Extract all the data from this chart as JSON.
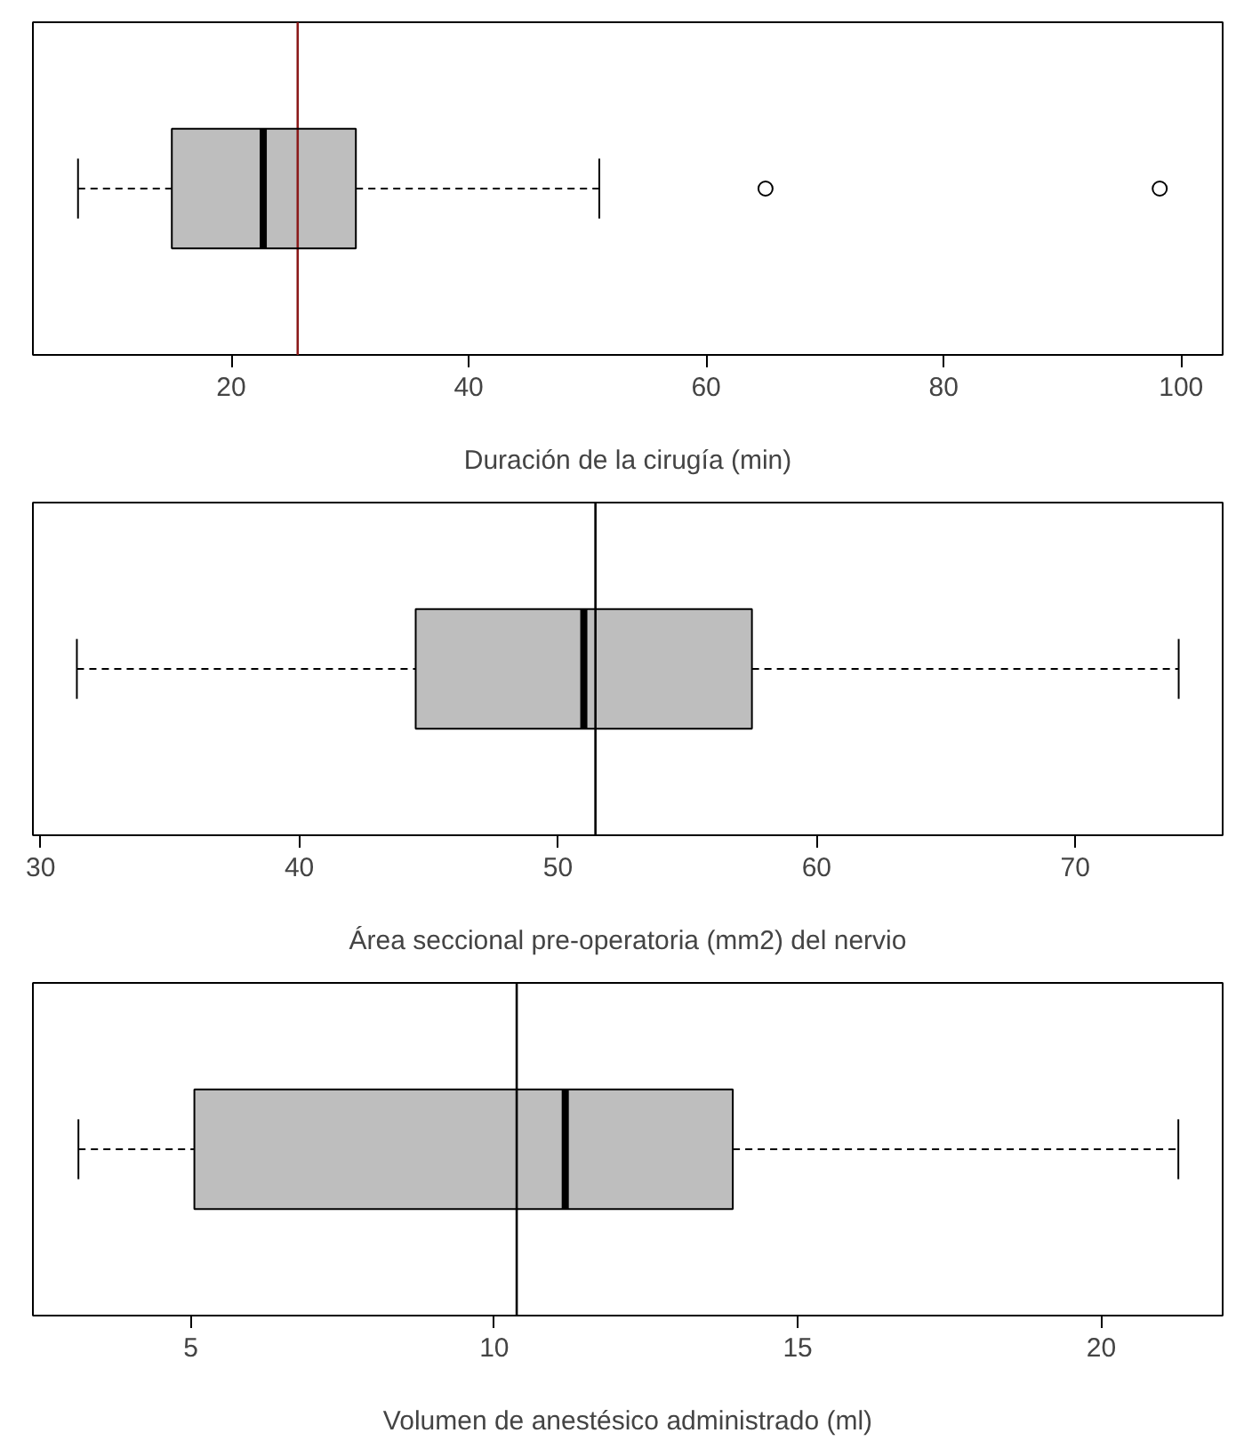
{
  "chart_data": [
    {
      "type": "box",
      "xlabel": "Duración de la cirugía (min)",
      "orientation": "horizontal",
      "categories": [
        null
      ],
      "xlim": [
        3.3,
        103.5
      ],
      "xticks": [
        20,
        40,
        60,
        80,
        100
      ],
      "tick_labels": "x",
      "grid": false,
      "boxes": [
        {
          "low": 7.1,
          "q1": 15.0,
          "median": 22.7,
          "q3": 30.5,
          "high": 51.0,
          "outliers": [
            65,
            98.2
          ]
        }
      ],
      "ref_lines": [
        {
          "axis": "x",
          "value": 25.6,
          "label": null,
          "color": "#8b1a1a"
        }
      ]
    },
    {
      "type": "box",
      "xlabel": "Área seccional pre-operatoria (mm2) del nervio",
      "orientation": "horizontal",
      "categories": [
        null
      ],
      "xlim": [
        29.7,
        75.7
      ],
      "xticks": [
        30,
        40,
        50,
        60,
        70
      ],
      "tick_labels": "x",
      "grid": false,
      "boxes": [
        {
          "low": 31.4,
          "q1": 44.5,
          "median": 51.0,
          "q3": 57.5,
          "high": 74.0
        }
      ],
      "ref_lines": [
        {
          "axis": "x",
          "value": 51.45,
          "label": null,
          "color": "#000000"
        }
      ]
    },
    {
      "type": "box",
      "xlabel": "Volumen de anestésico administrado (ml)",
      "orientation": "horizontal",
      "categories": [
        null
      ],
      "xlim": [
        2.4,
        22.0
      ],
      "xticks": [
        5,
        10,
        15,
        20
      ],
      "tick_labels": "x",
      "grid": false,
      "boxes": [
        {
          "low": 3.15,
          "q1": 5.06,
          "median": 11.17,
          "q3": 13.93,
          "high": 21.27
        }
      ],
      "ref_lines": [
        {
          "axis": "x",
          "value": 10.37,
          "label": null,
          "color": "#000000"
        }
      ]
    }
  ]
}
